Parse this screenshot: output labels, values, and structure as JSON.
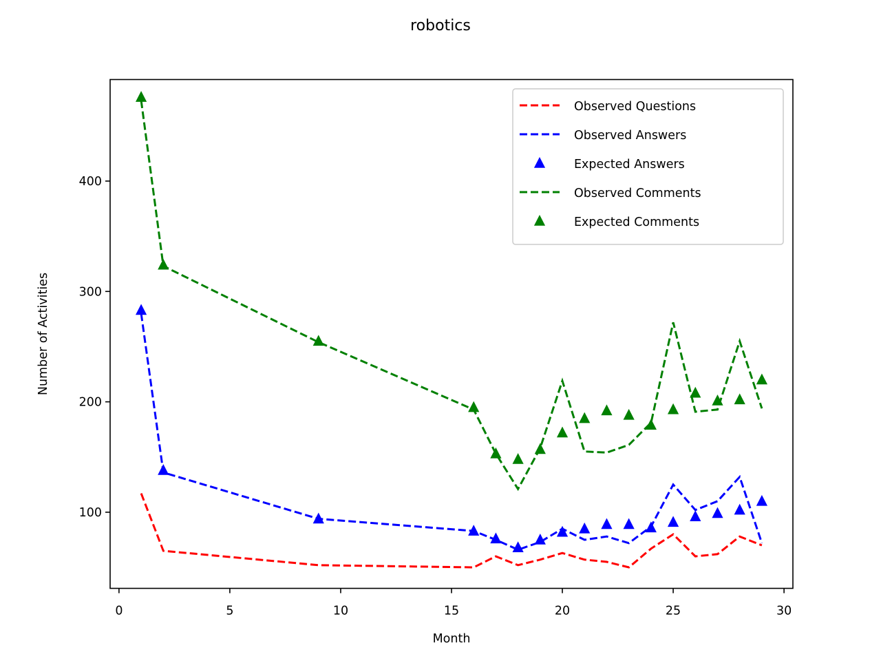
{
  "chart_data": {
    "type": "line",
    "title": "robotics",
    "xlabel": "Month",
    "ylabel": "Number of Activities",
    "xlim": [
      -0.4,
      30.4
    ],
    "ylim": [
      31,
      492
    ],
    "xticks": [
      0,
      5,
      10,
      15,
      20,
      25,
      30
    ],
    "yticks": [
      100,
      200,
      300,
      400
    ],
    "grid": false,
    "legend_position": "top-right",
    "x": [
      1,
      2,
      9,
      16,
      17,
      18,
      19,
      20,
      21,
      22,
      23,
      24,
      25,
      26,
      27,
      28,
      29
    ],
    "series": [
      {
        "name": "Observed Questions",
        "style": "dashed-line",
        "color": "#ff0000",
        "values": [
          117,
          65,
          52,
          50,
          60,
          52,
          57,
          63,
          57,
          55,
          50,
          67,
          80,
          60,
          62,
          78,
          70
        ]
      },
      {
        "name": "Observed Answers",
        "style": "dashed-line",
        "color": "#0000ff",
        "values": [
          280,
          136,
          94,
          83,
          75,
          66,
          73,
          85,
          75,
          78,
          72,
          87,
          125,
          102,
          110,
          132,
          72
        ]
      },
      {
        "name": "Expected Answers",
        "style": "triangle-marker",
        "color": "#0000ff",
        "values": [
          283,
          138,
          94,
          83,
          76,
          68,
          75,
          82,
          85,
          89,
          89,
          86,
          91,
          96,
          99,
          102,
          110
        ]
      },
      {
        "name": "Observed Comments",
        "style": "dashed-line",
        "color": "#008000",
        "values": [
          473,
          323,
          254,
          193,
          153,
          121,
          158,
          219,
          155,
          154,
          161,
          181,
          272,
          191,
          193,
          255,
          194
        ]
      },
      {
        "name": "Expected Comments",
        "style": "triangle-marker",
        "color": "#008000",
        "values": [
          476,
          324,
          255,
          195,
          153,
          148,
          157,
          172,
          185,
          192,
          188,
          179,
          193,
          208,
          201,
          202,
          220
        ]
      }
    ]
  }
}
